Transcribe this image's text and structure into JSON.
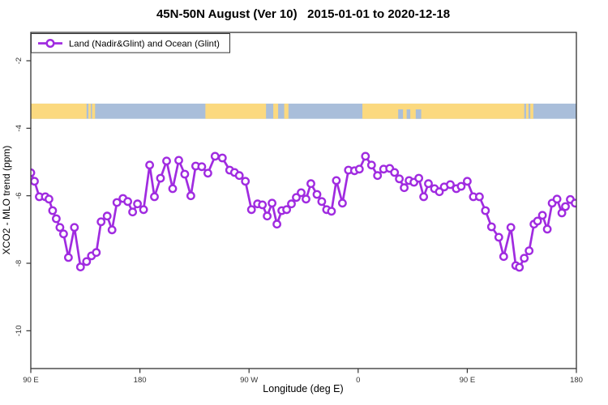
{
  "chart_data": {
    "type": "line",
    "title": "45N-50N August (Ver 10)   2015-01-01 to 2020-12-18",
    "xlabel": "Longitude (deg E)",
    "ylabel": "XCO2 - MLO trend (ppm)",
    "xlim": [
      90,
      540
    ],
    "ylim": [
      -11.1,
      -1.2
    ],
    "grid": false,
    "legend": {
      "position": "top-left",
      "label": "Land (Nadir&Glint) and Ocean (Glint)"
    },
    "x_ticks": [
      {
        "lon": 90,
        "label": "90 E"
      },
      {
        "lon": 180,
        "label": "180"
      },
      {
        "lon": 270,
        "label": "90 W"
      },
      {
        "lon": 360,
        "label": "0"
      },
      {
        "lon": 450,
        "label": "90 E"
      },
      {
        "lon": 540,
        "label": "180"
      }
    ],
    "y_ticks": [
      {
        "v": -2,
        "label": "-2"
      },
      {
        "v": -4,
        "label": "-4"
      },
      {
        "v": -6,
        "label": "-6"
      },
      {
        "v": -8,
        "label": "-8"
      },
      {
        "v": -10,
        "label": "-10"
      }
    ],
    "map_strip": {
      "ocean_color": "#A9BEDA",
      "land_color": "#FBD97F",
      "value_range": [
        -3.27,
        -3.72
      ],
      "land_segments": [
        [
          90,
          136
        ],
        [
          137.5,
          139.5
        ],
        [
          140.5,
          143
        ],
        [
          234,
          284
        ],
        [
          290,
          294
        ],
        [
          299,
          302.5
        ],
        [
          363.5,
          497
        ],
        [
          498.5,
          500.5
        ],
        [
          502,
          504.5
        ]
      ],
      "sea_patches": [
        [
          393,
          397
        ],
        [
          400,
          403
        ],
        [
          407.5,
          412
        ]
      ]
    },
    "series": [
      {
        "name": "Land (Nadir&Glint) and Ocean (Glint)",
        "color": "#A02BE0",
        "marker": "open-circle",
        "points": [
          [
            90,
            -5.32
          ],
          [
            93,
            -5.57
          ],
          [
            97,
            -6.03
          ],
          [
            102,
            -6.03
          ],
          [
            105,
            -6.1
          ],
          [
            108,
            -6.44
          ],
          [
            111,
            -6.68
          ],
          [
            114,
            -6.94
          ],
          [
            117,
            -7.13
          ],
          [
            121,
            -7.83
          ],
          [
            126,
            -6.94
          ],
          [
            131,
            -8.11
          ],
          [
            136,
            -7.95
          ],
          [
            140,
            -7.78
          ],
          [
            144,
            -7.68
          ],
          [
            148,
            -6.77
          ],
          [
            153,
            -6.6
          ],
          [
            157,
            -7.01
          ],
          [
            161,
            -6.2
          ],
          [
            166,
            -6.08
          ],
          [
            170,
            -6.17
          ],
          [
            174,
            -6.48
          ],
          [
            178,
            -6.24
          ],
          [
            183,
            -6.41
          ],
          [
            188,
            -5.09
          ],
          [
            192,
            -6.03
          ],
          [
            197,
            -5.48
          ],
          [
            202,
            -4.97
          ],
          [
            207,
            -5.79
          ],
          [
            212,
            -4.95
          ],
          [
            217,
            -5.36
          ],
          [
            222,
            -6.0
          ],
          [
            226,
            -5.12
          ],
          [
            231,
            -5.14
          ],
          [
            236,
            -5.33
          ],
          [
            242,
            -4.83
          ],
          [
            248,
            -4.88
          ],
          [
            254,
            -5.24
          ],
          [
            258,
            -5.31
          ],
          [
            262,
            -5.4
          ],
          [
            267,
            -5.57
          ],
          [
            272,
            -6.41
          ],
          [
            277,
            -6.24
          ],
          [
            281,
            -6.27
          ],
          [
            285,
            -6.6
          ],
          [
            289,
            -6.22
          ],
          [
            293,
            -6.84
          ],
          [
            297,
            -6.44
          ],
          [
            301,
            -6.41
          ],
          [
            305,
            -6.24
          ],
          [
            309,
            -6.05
          ],
          [
            313,
            -5.91
          ],
          [
            317,
            -6.1
          ],
          [
            321,
            -5.64
          ],
          [
            326,
            -5.96
          ],
          [
            330,
            -6.17
          ],
          [
            334,
            -6.41
          ],
          [
            338,
            -6.46
          ],
          [
            342,
            -5.55
          ],
          [
            347,
            -6.22
          ],
          [
            352,
            -5.24
          ],
          [
            357,
            -5.26
          ],
          [
            361,
            -5.21
          ],
          [
            366,
            -4.83
          ],
          [
            371,
            -5.09
          ],
          [
            376,
            -5.4
          ],
          [
            381,
            -5.21
          ],
          [
            386,
            -5.19
          ],
          [
            390,
            -5.31
          ],
          [
            394,
            -5.5
          ],
          [
            398,
            -5.76
          ],
          [
            402,
            -5.55
          ],
          [
            406,
            -5.6
          ],
          [
            410,
            -5.48
          ],
          [
            414,
            -6.03
          ],
          [
            418,
            -5.64
          ],
          [
            423,
            -5.79
          ],
          [
            427,
            -5.88
          ],
          [
            431,
            -5.74
          ],
          [
            436,
            -5.67
          ],
          [
            441,
            -5.79
          ],
          [
            445,
            -5.72
          ],
          [
            450,
            -5.57
          ],
          [
            455,
            -6.03
          ],
          [
            460,
            -6.03
          ],
          [
            465,
            -6.44
          ],
          [
            470,
            -6.92
          ],
          [
            476,
            -7.23
          ],
          [
            480,
            -7.8
          ],
          [
            486,
            -6.94
          ],
          [
            490,
            -8.07
          ],
          [
            493,
            -8.12
          ],
          [
            497,
            -7.85
          ],
          [
            501,
            -7.63
          ],
          [
            505,
            -6.84
          ],
          [
            508,
            -6.75
          ],
          [
            512,
            -6.58
          ],
          [
            516,
            -6.99
          ],
          [
            520,
            -6.22
          ],
          [
            524,
            -6.1
          ],
          [
            528,
            -6.51
          ],
          [
            531,
            -6.32
          ],
          [
            535,
            -6.11
          ],
          [
            539,
            -6.22
          ]
        ]
      }
    ],
    "colors": {
      "axis": "#333333",
      "tick_label": "#333333",
      "title": "#000000",
      "background": "#ffffff"
    }
  }
}
